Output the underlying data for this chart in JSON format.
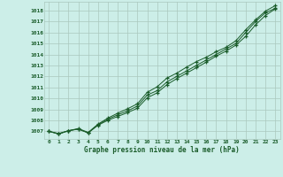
{
  "title": "Graphe pression niveau de la mer (hPa)",
  "background_color": "#cceee8",
  "grid_color": "#aac8be",
  "line_color": "#1a5c2a",
  "x_labels": [
    "0",
    "1",
    "2",
    "3",
    "4",
    "5",
    "6",
    "7",
    "8",
    "9",
    "10",
    "11",
    "12",
    "13",
    "14",
    "15",
    "16",
    "17",
    "18",
    "19",
    "20",
    "21",
    "22",
    "23"
  ],
  "ylim": [
    1006.3,
    1018.8
  ],
  "yticks": [
    1007,
    1008,
    1009,
    1010,
    1011,
    1012,
    1013,
    1014,
    1015,
    1016,
    1017,
    1018
  ],
  "series": [
    [
      1007.0,
      1006.8,
      1007.05,
      1007.2,
      1006.85,
      1007.6,
      1008.1,
      1008.5,
      1008.85,
      1009.3,
      1010.3,
      1010.7,
      1011.5,
      1012.0,
      1012.5,
      1013.0,
      1013.5,
      1014.0,
      1014.5,
      1015.0,
      1016.0,
      1017.0,
      1017.8,
      1018.2
    ],
    [
      1007.0,
      1006.75,
      1007.05,
      1007.25,
      1006.9,
      1007.65,
      1008.2,
      1008.65,
      1009.05,
      1009.5,
      1010.55,
      1011.05,
      1011.85,
      1012.3,
      1012.85,
      1013.35,
      1013.75,
      1014.25,
      1014.65,
      1015.25,
      1016.25,
      1017.15,
      1017.95,
      1018.45
    ],
    [
      1007.0,
      1006.75,
      1007.05,
      1007.2,
      1006.85,
      1007.55,
      1008.0,
      1008.35,
      1008.7,
      1009.1,
      1010.05,
      1010.5,
      1011.25,
      1011.8,
      1012.3,
      1012.8,
      1013.3,
      1013.85,
      1014.3,
      1014.85,
      1015.65,
      1016.7,
      1017.55,
      1018.15
    ]
  ]
}
